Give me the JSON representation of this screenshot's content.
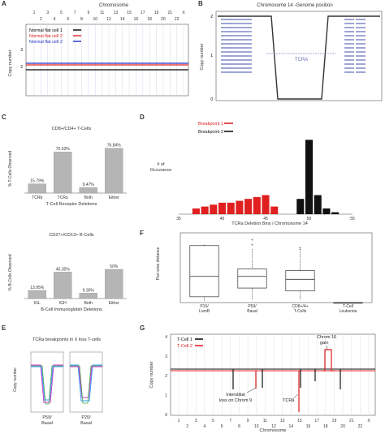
{
  "panels": {
    "A": {
      "label": "A",
      "title": "Chromosome",
      "ylabel": "Copy number",
      "chrom_top": [
        "1",
        "3",
        "5",
        "7",
        "9",
        "11",
        "13",
        "15",
        "17",
        "19",
        "21",
        "X"
      ],
      "chrom_bottom": [
        "2",
        "4",
        "6",
        "8",
        "10",
        "12",
        "14",
        "16",
        "18",
        "20",
        "22"
      ],
      "legend": [
        "Normal flat cell 1",
        "Normal flat cell 2",
        "Normal flat cell 2"
      ],
      "yticks": [
        "3",
        "2"
      ],
      "colors": [
        "#000000",
        "#e02020",
        "#2030c0"
      ]
    },
    "B": {
      "label": "B",
      "title": "Chromosome 14 -Genome position",
      "ylabel": "Copy number",
      "yticks": [
        "2",
        "1",
        "0"
      ],
      "region_label": "TCRA"
    },
    "C": {
      "label": "C",
      "top": {
        "title": "CD8+/CD4+ T-Cells",
        "ylabel": "% T-Cells Observed",
        "xlabel": "T-Cell Receptor Deletions"
      },
      "bottom": {
        "title": "CD27+/CD13+ B-Cells",
        "ylabel": "% B-Cells Observed",
        "xlabel": "B-Cell Immunoglobin Deletions"
      }
    },
    "D": {
      "label": "D",
      "ylabel": "# of Occurance",
      "xlabel": "TCRa Deletion Bins / Chromosome 14",
      "legend": [
        "Breakpoint 1",
        "Breakpoint 2"
      ],
      "xticks": [
        "35",
        "40",
        "45",
        "50",
        "55"
      ]
    },
    "E": {
      "label": "E",
      "title": "TCRa breakpoints in X loss T-cells",
      "ylabel": "Copy number",
      "groups": [
        "P59/ Basal",
        "P20/ Basal"
      ]
    },
    "F": {
      "label": "F",
      "ylabel": "Pair-wise distance",
      "categories": [
        "P15/ LumB",
        "P59/ Basal",
        "CD8+/4+ T-Cells",
        "T-Cell Leukemia"
      ]
    },
    "G": {
      "label": "G",
      "ylabel": "Copy number",
      "xlabel": "Chromosome",
      "legend": [
        "T-Cell 1",
        "T-Cell 2"
      ],
      "yticks": [
        "4",
        "3",
        "2",
        "1",
        "0"
      ],
      "chrom_top": [
        "1",
        "3",
        "5",
        "7",
        "9",
        "11",
        "13",
        "15",
        "17",
        "19",
        "21",
        "X"
      ],
      "chrom_bottom": [
        "2",
        "4",
        "6",
        "8",
        "10",
        "12",
        "14",
        "16",
        "18",
        "20",
        "22"
      ],
      "annotations": {
        "gain": "Chrom 16 gain",
        "interstitial": "Interstitial loss on Chrom 9",
        "tcra": "TCRa"
      }
    }
  },
  "chart_data": [
    {
      "type": "bar",
      "title": "CD8+/CD4+ T-Cells",
      "ylabel": "% T-Cells Observed",
      "xlabel": "T-Cell Receptor Deletions",
      "categories": [
        "TCRb",
        "TCRa",
        "Both",
        "Either"
      ],
      "values": [
        15.79,
        70.53,
        9.47,
        76.84
      ],
      "value_labels": [
        "15.79%",
        "70.53%",
        "9.47%",
        "76.84%"
      ],
      "ylim": [
        0,
        100
      ],
      "color": "#b5b5b5"
    },
    {
      "type": "bar",
      "title": "CD27+/CD13+ B-Cells",
      "ylabel": "% B-Cells Observed",
      "xlabel": "B-Cell Immunoglobin Deletions",
      "categories": [
        "IGL",
        "IGH",
        "Both",
        "Either"
      ],
      "values": [
        13.95,
        45.35,
        9.3,
        50
      ],
      "value_labels": [
        "13.95%",
        "45.35%",
        "9.30%",
        "50%"
      ],
      "ylim": [
        0,
        100
      ],
      "color": "#b5b5b5"
    },
    {
      "type": "bar",
      "ylabel": "# of Occurance",
      "xlabel": "TCRa Deletion Bins / Chromosome 14",
      "xlim": [
        35,
        55
      ],
      "xticks": [
        35,
        40,
        45,
        50,
        55
      ],
      "series": [
        {
          "name": "Breakpoint 1",
          "color": "#e02020",
          "x": [
            37,
            38,
            39,
            40,
            41,
            42,
            43,
            44,
            45,
            46
          ],
          "values": [
            3,
            4,
            5,
            6,
            6,
            7,
            8,
            9,
            10,
            4
          ]
        },
        {
          "name": "Breakpoint 2",
          "color": "#111111",
          "x": [
            49,
            50,
            51,
            52,
            53
          ],
          "values": [
            8,
            39,
            10,
            3,
            1
          ]
        }
      ]
    },
    {
      "type": "box",
      "ylabel": "Pair-wise distance",
      "categories": [
        "P15/ LumB",
        "P59/ Basal",
        "CD8+/4+ T-Cells",
        "T-Cell Leukemia"
      ],
      "ylim": [
        0,
        1.2
      ],
      "boxes": [
        {
          "min": 0.02,
          "q1": 0.1,
          "median": 0.45,
          "q3": 0.98,
          "max": 1.0,
          "outliers": []
        },
        {
          "min": 0.05,
          "q1": 0.25,
          "median": 0.45,
          "q3": 0.58,
          "max": 0.92,
          "outliers": [
            1.0,
            1.08
          ]
        },
        {
          "min": 0.05,
          "q1": 0.2,
          "median": 0.4,
          "q3": 0.55,
          "max": 0.88,
          "outliers": [
            0.92,
            0.95
          ]
        },
        {
          "min": 0.0,
          "q1": 0.0,
          "median": 0.0,
          "q3": 0.0,
          "max": 0.0,
          "outliers": []
        }
      ]
    }
  ]
}
